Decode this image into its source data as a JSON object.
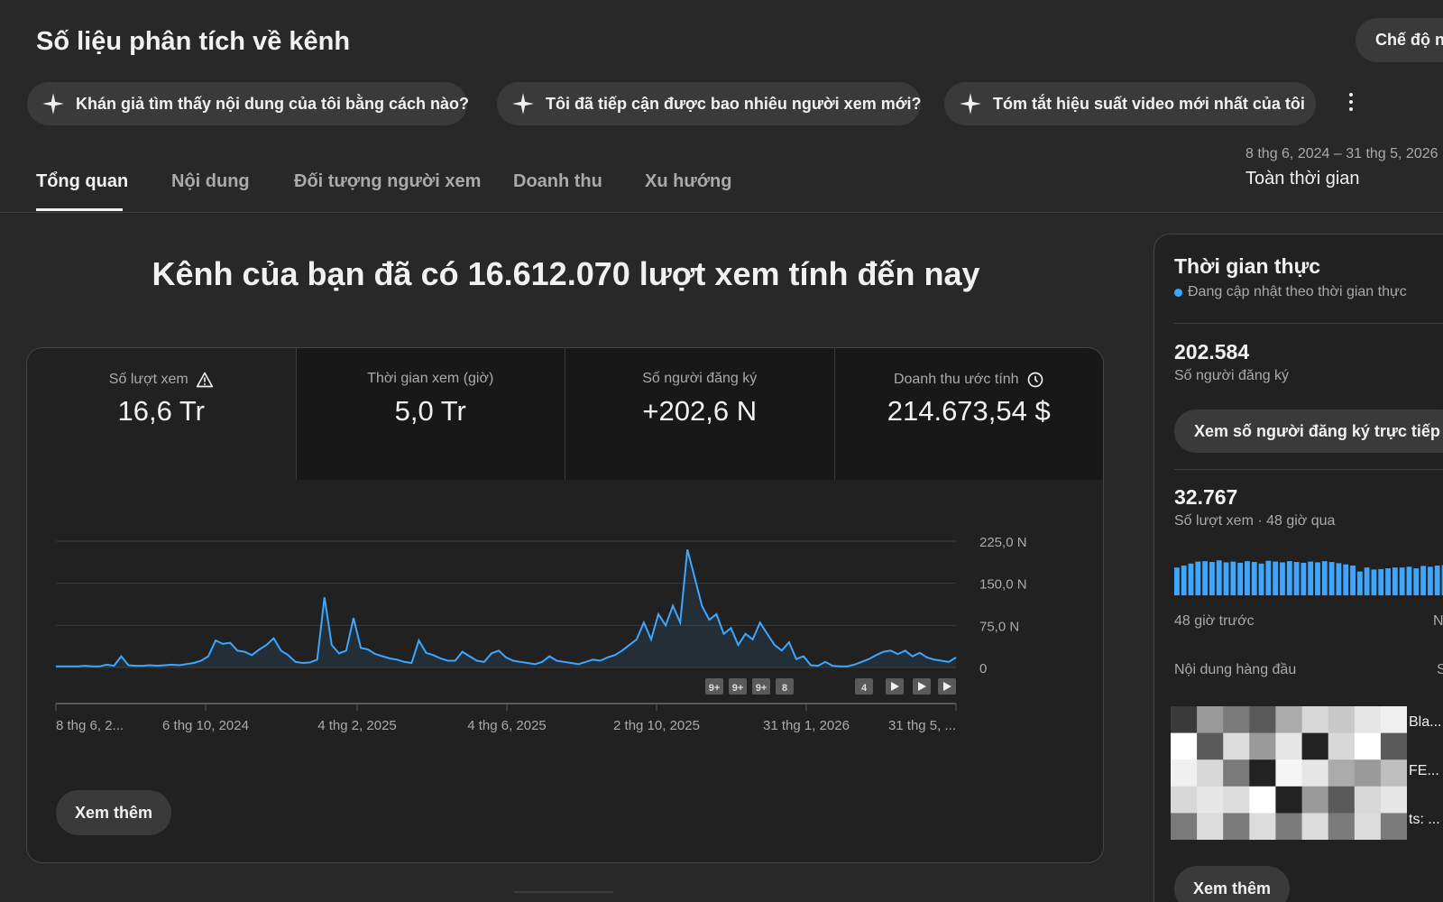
{
  "header": {
    "title": "Số liệu phân tích về kênh",
    "mode_button": "Chế độ n"
  },
  "chips": [
    {
      "label": "Khán giả tìm thấy nội dung của tôi bằng cách nào?"
    },
    {
      "label": "Tôi đã tiếp cận được bao nhiêu người xem mới?"
    },
    {
      "label": "Tóm tắt hiệu suất video mới nhất của tôi"
    }
  ],
  "date": {
    "range": "8 thg 6, 2024 – 31 thg 5, 2026",
    "label": "Toàn thời gian"
  },
  "tabs": [
    {
      "label": "Tổng quan",
      "active": true
    },
    {
      "label": "Nội dung"
    },
    {
      "label": "Đối tượng người xem"
    },
    {
      "label": "Doanh thu"
    },
    {
      "label": "Xu hướng"
    }
  ],
  "headline": "Kênh của bạn đã có 16.612.070 lượt xem tính đến nay",
  "metrics": [
    {
      "label": "Số lượt xem",
      "value": "16,6 Tr",
      "icon": "warning-icon"
    },
    {
      "label": "Thời gian xem (giờ)",
      "value": "5,0 Tr"
    },
    {
      "label": "Số người đăng ký",
      "value": "+202,6 N"
    },
    {
      "label": "Doanh thu ước tính",
      "value": "214.673,54 $",
      "icon": "clock-icon"
    }
  ],
  "chart_data": {
    "type": "area",
    "y_ticks": [
      "225,0 N",
      "150,0 N",
      "75,0 N",
      "0"
    ],
    "x_ticks": [
      "8 thg 6, 2...",
      "6 thg 10, 2024",
      "4 thg 2, 2025",
      "4 thg 6, 2025",
      "2 thg 10, 2025",
      "31 thg 1, 2026",
      "31 thg 5, ..."
    ],
    "ylim": [
      0,
      225000
    ],
    "color": "#3ea6ff",
    "markers": [
      "9+",
      "9+",
      "9+",
      "8",
      "4"
    ],
    "series": [
      {
        "values": [
          2000,
          2000,
          2000,
          2000,
          3000,
          2000,
          2000,
          5000,
          3000,
          20000,
          4000,
          3000,
          3000,
          4000,
          3000,
          4000,
          5000,
          4000,
          6000,
          8000,
          12000,
          20000,
          48000,
          42000,
          44000,
          30000,
          28000,
          22000,
          32000,
          40000,
          52000,
          30000,
          22000,
          10000,
          8000,
          9000,
          14000,
          125000,
          40000,
          25000,
          30000,
          88000,
          35000,
          32000,
          24000,
          20000,
          16000,
          14000,
          10000,
          8000,
          48000,
          26000,
          22000,
          16000,
          12000,
          12000,
          28000,
          20000,
          12000,
          10000,
          25000,
          30000,
          18000,
          12000,
          10000,
          8000,
          6000,
          10000,
          20000,
          12000,
          10000,
          8000,
          6000,
          10000,
          14000,
          12000,
          18000,
          22000,
          30000,
          40000,
          50000,
          80000,
          50000,
          95000,
          75000,
          110000,
          80000,
          210000,
          160000,
          110000,
          85000,
          95000,
          60000,
          70000,
          40000,
          60000,
          50000,
          80000,
          60000,
          40000,
          30000,
          45000,
          15000,
          20000,
          4000,
          3000,
          10000,
          3000,
          2000,
          2000,
          5000,
          10000,
          15000,
          22000,
          28000,
          30000,
          24000,
          30000,
          20000,
          26000,
          18000,
          14000,
          12000,
          10000,
          18000
        ]
      }
    ]
  },
  "card": {
    "more_label": "Xem thêm"
  },
  "realtime": {
    "title": "Thời gian thực",
    "subtitle": "Đang cập nhật theo thời gian thực",
    "subscribers": "202.584",
    "subscribers_label": "Số người đăng ký",
    "live_button": "Xem số người đăng ký trực tiếp",
    "views": "32.767",
    "views_label": "Số lượt xem · 48 giờ qua",
    "axis_left": "48 giờ trước",
    "axis_right": "N",
    "top_content": "Nội dung hàng đầu",
    "top_content_right": "S",
    "top_items": [
      "Bla...",
      "FE...",
      "ts: ..."
    ],
    "bars": [
      0.7,
      0.75,
      0.8,
      0.85,
      0.86,
      0.84,
      0.88,
      0.83,
      0.85,
      0.82,
      0.86,
      0.84,
      0.8,
      0.87,
      0.85,
      0.83,
      0.86,
      0.84,
      0.82,
      0.85,
      0.83,
      0.86,
      0.84,
      0.81,
      0.78,
      0.75,
      0.6,
      0.7,
      0.65,
      0.66,
      0.68,
      0.7,
      0.7,
      0.72,
      0.68,
      0.74,
      0.72,
      0.75,
      0.76,
      0.78,
      0.75
    ],
    "more_label": "Xem thêm"
  }
}
